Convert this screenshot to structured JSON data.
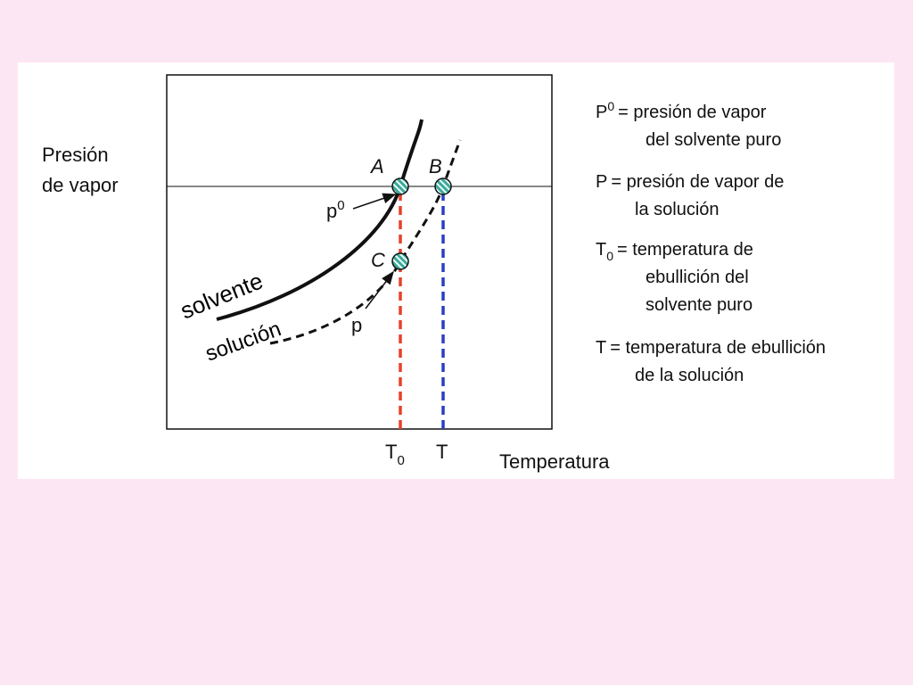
{
  "y_axis_label": [
    "Presión",
    "de vapor"
  ],
  "x_axis_label": "Temperatura",
  "curves": [
    {
      "label": "solvente"
    },
    {
      "label": "solución"
    }
  ],
  "points": [
    {
      "label": "A"
    },
    {
      "label": "B"
    },
    {
      "label": "C"
    }
  ],
  "pressure_labels": [
    {
      "base": "p",
      "sup": "0"
    },
    {
      "base": "p"
    }
  ],
  "temperature_labels": [
    {
      "base": "T",
      "sub": "0"
    },
    {
      "base": "T"
    }
  ],
  "legend": [
    {
      "symbol": {
        "base": "P",
        "sup": "0"
      },
      "lines": [
        "= presión de vapor",
        "del solvente puro"
      ]
    },
    {
      "symbol": {
        "base": "P"
      },
      "lines": [
        "= presión de vapor de",
        "la solución"
      ]
    },
    {
      "symbol": {
        "base": "T",
        "sub": "0"
      },
      "lines": [
        "= temperatura de",
        "ebullición del",
        "solvente puro"
      ]
    },
    {
      "symbol": {
        "base": "T"
      },
      "lines": [
        "= temperatura de ebullición",
        "de la solución"
      ]
    }
  ]
}
